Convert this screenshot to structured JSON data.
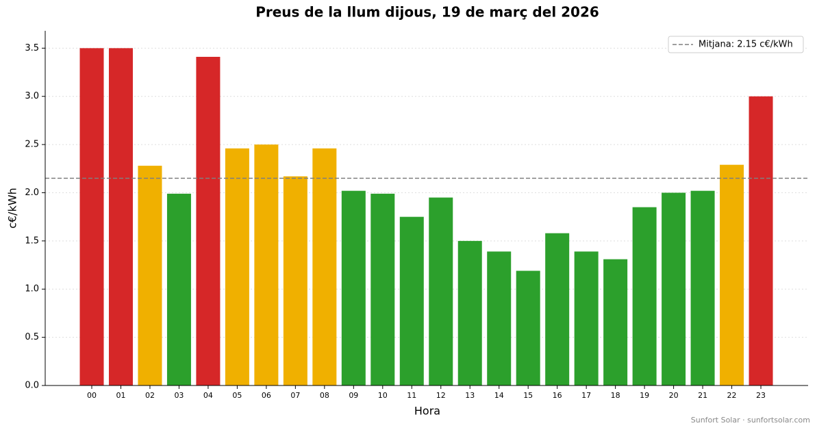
{
  "chart_data": {
    "type": "bar",
    "title": "Preus de la llum dijous, 19 de març del 2026",
    "x_label": "Hora",
    "y_label": "c€/kWh",
    "categories": [
      "00",
      "01",
      "02",
      "03",
      "04",
      "05",
      "06",
      "07",
      "08",
      "09",
      "10",
      "11",
      "12",
      "13",
      "14",
      "15",
      "16",
      "17",
      "18",
      "19",
      "20",
      "21",
      "22",
      "23"
    ],
    "values": [
      3.5,
      3.5,
      2.28,
      1.99,
      3.41,
      2.46,
      2.5,
      2.17,
      2.46,
      2.02,
      1.99,
      1.75,
      1.95,
      1.5,
      1.39,
      1.19,
      1.58,
      1.39,
      1.31,
      1.85,
      2.0,
      2.02,
      2.29,
      3.0
    ],
    "colors": [
      "#d62728",
      "#d62728",
      "#f0b000",
      "#2ca02c",
      "#d62728",
      "#f0b000",
      "#f0b000",
      "#f0b000",
      "#f0b000",
      "#2ca02c",
      "#2ca02c",
      "#2ca02c",
      "#2ca02c",
      "#2ca02c",
      "#2ca02c",
      "#2ca02c",
      "#2ca02c",
      "#2ca02c",
      "#2ca02c",
      "#2ca02c",
      "#2ca02c",
      "#2ca02c",
      "#f0b000",
      "#d62728"
    ],
    "mean": 2.15,
    "mean_label": "Mitjana: 2.15 c€/kWh",
    "mean_color": "#7f7f7f",
    "ylim": [
      0,
      3.68
    ],
    "yticks": [
      {
        "value": 0,
        "label": "0.0"
      },
      {
        "value": 0.5,
        "label": "0.5"
      },
      {
        "value": 1,
        "label": "1.0"
      },
      {
        "value": 1.5,
        "label": "1.5"
      },
      {
        "value": 2,
        "label": "2.0"
      },
      {
        "value": 2.5,
        "label": "2.5"
      },
      {
        "value": 3,
        "label": "3.0"
      },
      {
        "value": 3.5,
        "label": "3.5"
      }
    ],
    "grid": true,
    "legend": "upper right",
    "footer": "Sunfort Solar · sunfortsolar.com"
  }
}
